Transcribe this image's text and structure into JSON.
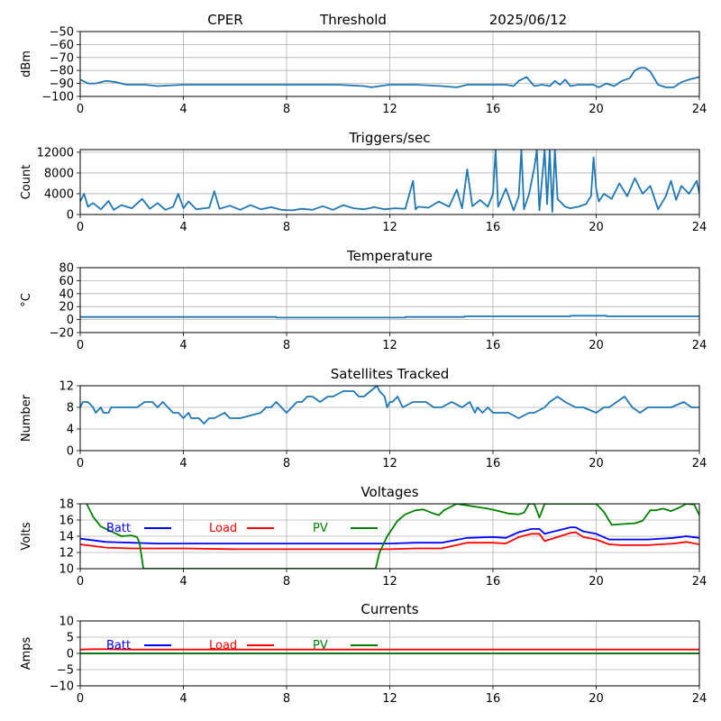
{
  "header": {
    "site": "CPER",
    "label": "Threshold",
    "date": "2025/06/12"
  },
  "colors": {
    "series_blue": "#1f77b4",
    "batt": "#0000ff",
    "load": "#ff0000",
    "pv": "#008000",
    "grid": "#b0b0b0"
  },
  "chart_data": [
    {
      "id": "threshold",
      "type": "line",
      "title": "",
      "xlabel": "",
      "ylabel": "dBm",
      "xlim": [
        0,
        24
      ],
      "ylim": [
        -100,
        -50
      ],
      "xticks": [
        0,
        4,
        8,
        12,
        16,
        20,
        24
      ],
      "yticks": [
        -100,
        -90,
        -80,
        -70,
        -60,
        -50
      ],
      "grid": true,
      "series": [
        {
          "color": "#1f77b4",
          "x": [
            0,
            0.3,
            0.6,
            1.0,
            1.4,
            1.8,
            2.5,
            3,
            4,
            5,
            6,
            7,
            8,
            9,
            10,
            11,
            11.3,
            11.6,
            12,
            13,
            14,
            14.6,
            15,
            15.5,
            16,
            16.5,
            16.8,
            17.0,
            17.3,
            17.6,
            17.9,
            18.2,
            18.4,
            18.6,
            18.8,
            19.0,
            19.3,
            19.6,
            19.9,
            20.1,
            20.4,
            20.7,
            21.0,
            21.3,
            21.5,
            21.7,
            21.9,
            22.1,
            22.4,
            22.7,
            23.0,
            23.3,
            23.6,
            24
          ],
          "y": [
            -87,
            -90,
            -90,
            -88,
            -89,
            -91,
            -91,
            -92,
            -91,
            -91,
            -91,
            -91,
            -91,
            -91,
            -91,
            -92,
            -93,
            -92,
            -91,
            -91,
            -92,
            -93,
            -91,
            -91,
            -91,
            -91,
            -92,
            -88,
            -85,
            -92,
            -91,
            -92,
            -88,
            -91,
            -87,
            -92,
            -91,
            -91,
            -91,
            -93,
            -90,
            -92,
            -88,
            -86,
            -80,
            -78,
            -78,
            -81,
            -91,
            -93,
            -93,
            -89,
            -87,
            -85
          ]
        }
      ]
    },
    {
      "id": "triggers",
      "type": "line",
      "title": "Triggers/sec",
      "xlabel": "",
      "ylabel": "Count",
      "xlim": [
        0,
        24
      ],
      "ylim": [
        0,
        12500
      ],
      "xticks": [
        0,
        4,
        8,
        12,
        16,
        20,
        24
      ],
      "yticks": [
        0,
        4000,
        8000,
        12000
      ],
      "grid": true,
      "series": [
        {
          "color": "#1f77b4",
          "x": [
            0,
            0.15,
            0.3,
            0.5,
            0.8,
            1.1,
            1.3,
            1.6,
            2.0,
            2.4,
            2.7,
            3.0,
            3.3,
            3.6,
            3.8,
            4.0,
            4.2,
            4.5,
            5.0,
            5.2,
            5.4,
            5.8,
            6.2,
            6.6,
            7.0,
            7.4,
            7.8,
            8.2,
            8.6,
            9.0,
            9.4,
            9.8,
            10.2,
            10.6,
            11.0,
            11.4,
            11.8,
            12.2,
            12.6,
            12.9,
            13.0,
            13.1,
            13.5,
            13.9,
            14.3,
            14.6,
            14.8,
            15.0,
            15.2,
            15.5,
            15.8,
            16.0,
            16.1,
            16.2,
            16.5,
            16.8,
            17.0,
            17.1,
            17.2,
            17.4,
            17.6,
            17.7,
            17.8,
            18.0,
            18.1,
            18.2,
            18.3,
            18.4,
            18.5,
            18.8,
            19.0,
            19.3,
            19.6,
            19.8,
            19.9,
            20.0,
            20.1,
            20.3,
            20.6,
            20.9,
            21.2,
            21.5,
            21.8,
            22.1,
            22.4,
            22.7,
            22.9,
            23.1,
            23.3,
            23.6,
            23.9,
            24
          ],
          "y": [
            2500,
            4000,
            1500,
            2200,
            1000,
            2600,
            900,
            1800,
            1200,
            3000,
            1100,
            2200,
            900,
            1500,
            4000,
            1200,
            2500,
            1000,
            1300,
            4500,
            1100,
            1700,
            900,
            1800,
            1000,
            1400,
            900,
            800,
            1100,
            900,
            1600,
            900,
            1800,
            1200,
            1000,
            1400,
            1000,
            1200,
            1100,
            6500,
            1000,
            1500,
            1300,
            2500,
            1500,
            4800,
            1200,
            8700,
            1600,
            2800,
            1500,
            4000,
            12500,
            1500,
            5000,
            800,
            3500,
            12500,
            1000,
            4000,
            9000,
            12500,
            800,
            12500,
            2000,
            12500,
            500,
            12500,
            3000,
            1500,
            1200,
            1500,
            2000,
            3500,
            11000,
            5000,
            2500,
            4000,
            3000,
            6000,
            3500,
            7000,
            4000,
            5500,
            1000,
            3500,
            6500,
            2800,
            5500,
            4000,
            6500,
            4000
          ]
        }
      ]
    },
    {
      "id": "temperature",
      "type": "line",
      "title": "Temperature",
      "xlabel": "",
      "ylabel": "°C",
      "xlim": [
        0,
        24
      ],
      "ylim": [
        -20,
        80
      ],
      "xticks": [
        0,
        4,
        8,
        12,
        16,
        20,
        24
      ],
      "yticks": [
        -20,
        0,
        20,
        40,
        60,
        80
      ],
      "grid": true,
      "series": [
        {
          "color": "#1f77b4",
          "x": [
            0,
            7.6,
            7.61,
            12.6,
            12.61,
            14.9,
            14.91,
            19.0,
            19.01,
            20.4,
            20.41,
            24
          ],
          "y": [
            4,
            4,
            3,
            3,
            4,
            4,
            5,
            5,
            6,
            6,
            5,
            5
          ]
        }
      ]
    },
    {
      "id": "satellites",
      "type": "line",
      "title": "Satellites Tracked",
      "xlabel": "",
      "ylabel": "Number",
      "xlim": [
        0,
        24
      ],
      "ylim": [
        0,
        12
      ],
      "xticks": [
        0,
        4,
        8,
        12,
        16,
        20,
        24
      ],
      "yticks": [
        0,
        4,
        8,
        12
      ],
      "grid": true,
      "series": [
        {
          "color": "#1f77b4",
          "x": [
            0,
            0.1,
            0.2,
            0.3,
            0.5,
            0.6,
            0.8,
            0.9,
            1.1,
            1.2,
            1.5,
            2.0,
            2.2,
            2.5,
            2.8,
            3.0,
            3.2,
            3.4,
            3.6,
            3.8,
            4.0,
            4.2,
            4.3,
            4.6,
            4.8,
            5.0,
            5.2,
            5.6,
            5.8,
            6.2,
            7.0,
            7.2,
            7.4,
            7.6,
            7.8,
            8.0,
            8.2,
            8.4,
            8.6,
            8.8,
            9.0,
            9.3,
            9.6,
            9.8,
            10.2,
            10.6,
            10.8,
            11.0,
            11.5,
            11.6,
            11.8,
            11.9,
            12.0,
            12.1,
            12.3,
            12.5,
            12.9,
            13.4,
            13.7,
            14.0,
            14.4,
            14.8,
            15.1,
            15.3,
            15.4,
            15.6,
            15.8,
            16.0,
            16.2,
            16.6,
            17.0,
            17.4,
            17.6,
            18.0,
            18.2,
            18.5,
            18.8,
            19.2,
            19.5,
            20.0,
            20.3,
            20.5,
            20.8,
            21.1,
            21.4,
            21.7,
            22.0,
            22.4,
            22.9,
            23.4,
            23.7,
            24
          ],
          "y": [
            8,
            9,
            9,
            9,
            8,
            7,
            8,
            7,
            7,
            8,
            8,
            8,
            8,
            9,
            9,
            8,
            9,
            8,
            7,
            7,
            6,
            7,
            6,
            6,
            5,
            6,
            6,
            7,
            6,
            6,
            7,
            8,
            8,
            9,
            8,
            7,
            8,
            9,
            9,
            10,
            10,
            9,
            10,
            10,
            11,
            11,
            10,
            10,
            12,
            11,
            10,
            8,
            9,
            9,
            10,
            8,
            9,
            9,
            8,
            8,
            9,
            8,
            9,
            7,
            8,
            7,
            8,
            7,
            7,
            7,
            6,
            7,
            7,
            8,
            9,
            10,
            9,
            8,
            8,
            7,
            8,
            8,
            9,
            10,
            8,
            7,
            8,
            8,
            8,
            9,
            8,
            8
          ]
        }
      ]
    },
    {
      "id": "voltages",
      "type": "line",
      "title": "Voltages",
      "xlabel": "",
      "ylabel": "Volts",
      "xlim": [
        0,
        24
      ],
      "ylim": [
        10,
        18
      ],
      "xticks": [
        0,
        4,
        8,
        12,
        16,
        20,
        24
      ],
      "yticks": [
        10,
        12,
        14,
        16,
        18
      ],
      "grid": true,
      "legend": {
        "placement": "top-left",
        "style": "label-then-line"
      },
      "series": [
        {
          "name": "Batt",
          "color": "#0000ff",
          "x": [
            0,
            1,
            2,
            3,
            4,
            6,
            8,
            9,
            10,
            11,
            12,
            13,
            14,
            15,
            16,
            16.5,
            17,
            17.5,
            17.8,
            18,
            19,
            19.2,
            19.5,
            20,
            20.5,
            21,
            22,
            23,
            23.5,
            24
          ],
          "y": [
            13.7,
            13.3,
            13.2,
            13.1,
            13.1,
            13.1,
            13.1,
            13.1,
            13.1,
            13.1,
            13.1,
            13.2,
            13.2,
            13.8,
            13.9,
            13.8,
            14.5,
            14.9,
            14.9,
            14.3,
            15.1,
            15.1,
            14.6,
            14.3,
            13.6,
            13.6,
            13.6,
            13.8,
            14.0,
            13.8
          ]
        },
        {
          "name": "Load",
          "color": "#ff0000",
          "x": [
            0,
            1,
            2,
            3,
            4,
            6,
            8,
            9,
            10,
            11,
            12,
            13,
            14,
            15,
            16,
            16.5,
            17,
            17.5,
            17.8,
            18,
            19,
            19.2,
            19.5,
            20,
            20.5,
            21,
            22,
            23,
            23.5,
            24
          ],
          "y": [
            13.0,
            12.6,
            12.5,
            12.5,
            12.5,
            12.4,
            12.4,
            12.4,
            12.4,
            12.4,
            12.4,
            12.5,
            12.5,
            13.2,
            13.2,
            13.1,
            13.9,
            14.3,
            14.3,
            13.4,
            14.4,
            14.5,
            13.9,
            13.6,
            13.0,
            12.9,
            12.9,
            13.1,
            13.3,
            13.0
          ]
        },
        {
          "name": "PV",
          "color": "#008000",
          "x": [
            0.25,
            0.5,
            0.8,
            1.2,
            1.6,
            2.0,
            2.2,
            2.3,
            2.45,
            2.55,
            11.45,
            11.6,
            11.9,
            12.3,
            12.6,
            13.0,
            13.3,
            13.7,
            13.9,
            14.1,
            14.6,
            15.0,
            15.4,
            15.8,
            16.1,
            16.6,
            17.0,
            17.2,
            17.4,
            17.6,
            17.8,
            18.0,
            19.0,
            19.3,
            19.6,
            20.0,
            20.3,
            20.6,
            21.0,
            21.5,
            21.8,
            22.1,
            22.3,
            22.6,
            22.9,
            23.2,
            23.5,
            23.8,
            24
          ],
          "y": [
            18,
            16.4,
            15.2,
            14.6,
            14.0,
            14.1,
            13.9,
            13.2,
            10,
            10,
            10,
            12.0,
            14.0,
            15.9,
            16.7,
            17.2,
            17.3,
            16.8,
            16.6,
            17.2,
            18,
            17.8,
            17.6,
            17.4,
            17.2,
            16.8,
            16.7,
            16.9,
            18,
            18,
            16.3,
            18,
            18,
            18,
            18,
            18,
            17.0,
            15.4,
            15.5,
            15.6,
            15.9,
            17.2,
            17.2,
            17.4,
            17.1,
            17.5,
            18,
            17.9,
            16.6
          ]
        }
      ]
    },
    {
      "id": "currents",
      "type": "line",
      "title": "Currents",
      "xlabel": "",
      "ylabel": "Amps",
      "xlim": [
        0,
        24
      ],
      "ylim": [
        -10,
        10
      ],
      "xticks": [
        0,
        4,
        8,
        12,
        16,
        20,
        24
      ],
      "yticks": [
        -10,
        -5,
        0,
        5,
        10
      ],
      "grid": true,
      "legend": {
        "placement": "top-left",
        "style": "label-then-line"
      },
      "series": [
        {
          "name": "Batt",
          "color": "#0000ff",
          "x": [
            0,
            24
          ],
          "y": [
            0,
            0
          ]
        },
        {
          "name": "Load",
          "color": "#ff0000",
          "x": [
            0,
            0.5,
            1,
            2,
            4,
            8,
            12,
            16,
            20,
            24
          ],
          "y": [
            1.2,
            1.3,
            1.3,
            1.2,
            1.2,
            1.2,
            1.2,
            1.2,
            1.2,
            1.2
          ]
        },
        {
          "name": "PV",
          "color": "#008000",
          "x": [
            0,
            24
          ],
          "y": [
            0,
            0
          ]
        }
      ]
    }
  ]
}
